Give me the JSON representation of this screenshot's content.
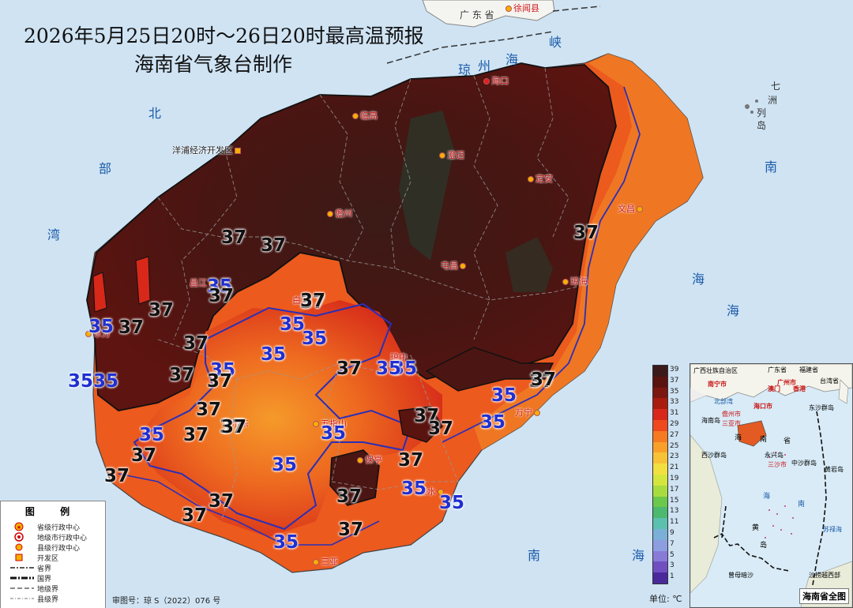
{
  "header": {
    "title": "2026年5月25日20时～26日20时最高温预报",
    "subtitle": "海南省气象台制作"
  },
  "seas": {
    "strait_1": "琼",
    "strait_2": "州",
    "strait_3": "海",
    "strait_4": "峡",
    "gulf_1": "北",
    "gulf_2": "部",
    "gulf_3": "湾",
    "south_1": "南",
    "south_2": "海",
    "west_1": "海",
    "southsea_1": "南",
    "southsea_2": "海",
    "qizhou_1": "七",
    "qizhou_2": "洲",
    "qizhou_3": "列",
    "qizhou_4": "岛"
  },
  "cities": {
    "guangdong": "广 东 省",
    "xuwen": "徐闻县",
    "haikou": "海口",
    "lingao": "临高",
    "chengmai": "澄迈",
    "ding_an": "定安",
    "wenchang": "文昌",
    "danzhou": "儋州",
    "yangpu": "洋浦经济开发区",
    "tunchang": "屯昌",
    "qionghai": "琼海",
    "changjiang": "昌江",
    "baisha": "白沙",
    "dongfang": "东方",
    "qiongzhong": "琼中",
    "wanning": "万宁",
    "ledong": "乐东",
    "wuzhishan": "五指山",
    "baoting": "保亭",
    "lingshui": "陵水",
    "sanya": "三亚"
  },
  "isotherm_labels": [
    {
      "text": "37",
      "cls": "c37"
    },
    {
      "text": "37",
      "cls": "c37"
    },
    {
      "text": "35",
      "cls": "c35"
    },
    {
      "text": "37",
      "cls": "c37"
    },
    {
      "text": "37",
      "cls": "c37"
    },
    {
      "text": "37",
      "cls": "c37"
    },
    {
      "text": "35",
      "cls": "c35"
    },
    {
      "text": "37",
      "cls": "c37"
    },
    {
      "text": "35",
      "cls": "c35"
    },
    {
      "text": "37",
      "cls": "c37"
    },
    {
      "text": "35",
      "cls": "c35"
    },
    {
      "text": "35",
      "cls": "c35"
    },
    {
      "text": "37",
      "cls": "c37"
    },
    {
      "text": "35",
      "cls": "c35"
    },
    {
      "text": "35",
      "cls": "c35"
    },
    {
      "text": "37",
      "cls": "c37"
    },
    {
      "text": "37",
      "cls": "c37"
    },
    {
      "text": "37",
      "cls": "c37"
    },
    {
      "text": "35",
      "cls": "c35"
    },
    {
      "text": "37",
      "cls": "c37"
    },
    {
      "text": "35",
      "cls": "c35"
    },
    {
      "text": "37",
      "cls": "c37"
    },
    {
      "text": "37",
      "cls": "c37"
    },
    {
      "text": "37",
      "cls": "c37"
    },
    {
      "text": "35",
      "cls": "c35"
    },
    {
      "text": "37",
      "cls": "c37"
    },
    {
      "text": "35",
      "cls": "c35"
    },
    {
      "text": "37",
      "cls": "c37"
    },
    {
      "text": "35",
      "cls": "c35"
    },
    {
      "text": "37",
      "cls": "c37"
    },
    {
      "text": "37",
      "cls": "c37"
    },
    {
      "text": "35",
      "cls": "c35"
    },
    {
      "text": "37",
      "cls": "c37"
    },
    {
      "text": "35",
      "cls": "c35"
    },
    {
      "text": "35",
      "cls": "c35"
    },
    {
      "text": "37",
      "cls": "c37"
    },
    {
      "text": "37",
      "cls": "c37"
    },
    {
      "text": "37",
      "cls": "c37"
    },
    {
      "text": "35",
      "cls": "c35"
    },
    {
      "text": "37",
      "cls": "c37"
    },
    {
      "text": "37",
      "cls": "c37"
    },
    {
      "text": "37",
      "cls": "c37"
    },
    {
      "text": "35",
      "cls": "c35"
    },
    {
      "text": "35",
      "cls": "c35"
    },
    {
      "text": "37",
      "cls": "c37"
    }
  ],
  "colorbar": {
    "ticks": [
      "39",
      "37",
      "35",
      "33",
      "31",
      "29",
      "27",
      "25",
      "23",
      "21",
      "19",
      "17",
      "15",
      "13",
      "11",
      "9",
      "7",
      "5",
      "3",
      "1"
    ],
    "colors": [
      "#3a1a1a",
      "#5a1410",
      "#7a1810",
      "#a81c10",
      "#d8281a",
      "#ee4a1e",
      "#f57a22",
      "#f9a02a",
      "#f8c236",
      "#f2e040",
      "#d4e63e",
      "#a8dc3e",
      "#6cc84a",
      "#4cb870",
      "#5cc0b0",
      "#7ab0d8",
      "#8c9ee0",
      "#8a7ad8",
      "#7050c0",
      "#4a2a9a"
    ],
    "unit": "单位: ℃"
  },
  "legend": {
    "title": "图 例",
    "items": [
      "省级行政中心",
      "地级市行政中心",
      "县级行政中心",
      "开发区",
      "省界",
      "国界",
      "地级界",
      "县级界"
    ]
  },
  "review_number": "审图号：琼 S（2022）076 号",
  "inset": {
    "label": "海南省全图",
    "texts": [
      "广西壮族自治区",
      "广东省",
      "福建省",
      "台湾省",
      "南宁市",
      "广州市",
      "澳门",
      "香港",
      "北部湾",
      "海口市",
      "东沙群岛",
      "儋州市",
      "三亚市",
      "海",
      "南",
      "省",
      "海南岛",
      "西沙群岛",
      "永兴岛",
      "三沙市",
      "中沙群岛",
      "黄岩岛",
      "海",
      "南",
      "黄",
      "岛",
      "曾母暗沙",
      "苏禄海",
      "沙捞越西部"
    ]
  }
}
